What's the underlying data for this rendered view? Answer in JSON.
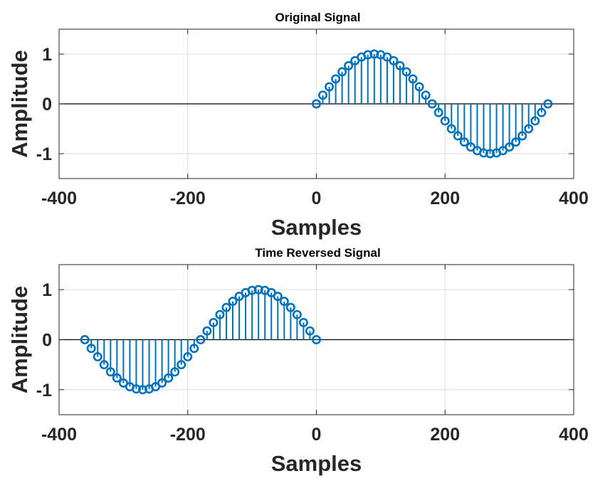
{
  "colors": {
    "stem": "#0072BD",
    "axis": "#262626",
    "grid": "#dcdcdc",
    "baseline": "#000000",
    "background": "#ffffff"
  },
  "chart_data": [
    {
      "type": "stem",
      "title": "Original Signal",
      "xlabel": "Samples",
      "ylabel": "Amplitude",
      "xlim": [
        -400,
        400
      ],
      "ylim": [
        -1.5,
        1.5
      ],
      "xticks": [
        -400,
        -200,
        0,
        200,
        400
      ],
      "yticks": [
        -1,
        0,
        1
      ],
      "xtick_labels": [
        "-400",
        "-200",
        "0",
        "200",
        "400"
      ],
      "ytick_labels": [
        "-1",
        "0",
        "1"
      ],
      "grid": true,
      "series": [
        {
          "marker": "circle-open",
          "x": [
            0,
            10,
            20,
            30,
            40,
            50,
            60,
            70,
            80,
            90,
            100,
            110,
            120,
            130,
            140,
            150,
            160,
            170,
            180,
            190,
            200,
            210,
            220,
            230,
            240,
            250,
            260,
            270,
            280,
            290,
            300,
            310,
            320,
            330,
            340,
            350,
            360
          ],
          "y": [
            0,
            0.174,
            0.342,
            0.5,
            0.643,
            0.766,
            0.866,
            0.94,
            0.985,
            1,
            0.985,
            0.94,
            0.866,
            0.766,
            0.643,
            0.5,
            0.342,
            0.174,
            0,
            -0.174,
            -0.342,
            -0.5,
            -0.643,
            -0.766,
            -0.866,
            -0.94,
            -0.985,
            -1,
            -0.985,
            -0.94,
            -0.866,
            -0.766,
            -0.643,
            -0.5,
            -0.342,
            -0.174,
            0
          ]
        }
      ]
    },
    {
      "type": "stem",
      "title": "Time Reversed Signal",
      "xlabel": "Samples",
      "ylabel": "Amplitude",
      "xlim": [
        -400,
        400
      ],
      "ylim": [
        -1.5,
        1.5
      ],
      "xticks": [
        -400,
        -200,
        0,
        200,
        400
      ],
      "yticks": [
        -1,
        0,
        1
      ],
      "xtick_labels": [
        "-400",
        "-200",
        "0",
        "200",
        "400"
      ],
      "ytick_labels": [
        "-1",
        "0",
        "1"
      ],
      "grid": true,
      "series": [
        {
          "marker": "circle-open",
          "x": [
            -360,
            -350,
            -340,
            -330,
            -320,
            -310,
            -300,
            -290,
            -280,
            -270,
            -260,
            -250,
            -240,
            -230,
            -220,
            -210,
            -200,
            -190,
            -180,
            -170,
            -160,
            -150,
            -140,
            -130,
            -120,
            -110,
            -100,
            -90,
            -80,
            -70,
            -60,
            -50,
            -40,
            -30,
            -20,
            -10,
            0
          ],
          "y": [
            0,
            -0.174,
            -0.342,
            -0.5,
            -0.643,
            -0.766,
            -0.866,
            -0.94,
            -0.985,
            -1,
            -0.985,
            -0.94,
            -0.866,
            -0.766,
            -0.643,
            -0.5,
            -0.342,
            -0.174,
            0,
            0.174,
            0.342,
            0.5,
            0.643,
            0.766,
            0.866,
            0.94,
            0.985,
            1,
            0.985,
            0.94,
            0.866,
            0.766,
            0.643,
            0.5,
            0.342,
            0.174,
            0
          ]
        }
      ]
    }
  ]
}
